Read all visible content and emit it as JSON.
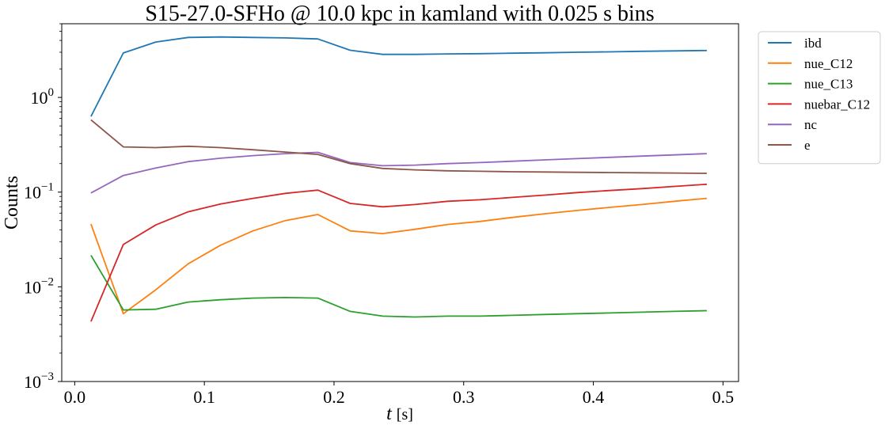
{
  "chart_data": {
    "type": "line",
    "title": "S15-27.0-SFHo @ 10.0 kpc in kamland with 0.025 s bins",
    "xlabel_var": "t",
    "xlabel_unit": "[s]",
    "ylabel": "Counts",
    "xlim": [
      -0.01,
      0.512
    ],
    "ylim": [
      0.001,
      6.0
    ],
    "yscale": "log",
    "legend_position": "outside-top-right",
    "xticks": [
      {
        "value": 0.0,
        "label": "0.0"
      },
      {
        "value": 0.1,
        "label": "0.1"
      },
      {
        "value": 0.2,
        "label": "0.2"
      },
      {
        "value": 0.3,
        "label": "0.3"
      },
      {
        "value": 0.4,
        "label": "0.4"
      },
      {
        "value": 0.5,
        "label": "0.5"
      }
    ],
    "yticks": [
      {
        "value": 0.001,
        "base": "10",
        "exp": "−3"
      },
      {
        "value": 0.01,
        "base": "10",
        "exp": "−2"
      },
      {
        "value": 0.1,
        "base": "10",
        "exp": "−1"
      },
      {
        "value": 1,
        "base": "10",
        "exp": "0"
      }
    ],
    "x": [
      0.0125,
      0.0375,
      0.0625,
      0.0875,
      0.1125,
      0.1375,
      0.1625,
      0.1875,
      0.2125,
      0.2375,
      0.2625,
      0.2875,
      0.3125,
      0.3375,
      0.3625,
      0.3875,
      0.4125,
      0.4375,
      0.4625,
      0.4875
    ],
    "series": [
      {
        "name": "ibd",
        "color": "#1f77b4",
        "values": [
          0.63,
          2.95,
          3.85,
          4.3,
          4.35,
          4.3,
          4.25,
          4.15,
          3.15,
          2.85,
          2.85,
          2.88,
          2.9,
          2.93,
          2.96,
          3.0,
          3.03,
          3.07,
          3.1,
          3.13
        ]
      },
      {
        "name": "nue_C12",
        "color": "#ff7f0e",
        "values": [
          0.046,
          0.0052,
          0.0093,
          0.0175,
          0.0275,
          0.039,
          0.05,
          0.058,
          0.039,
          0.0365,
          0.0405,
          0.0455,
          0.049,
          0.054,
          0.059,
          0.064,
          0.069,
          0.074,
          0.08,
          0.086
        ]
      },
      {
        "name": "nue_C13",
        "color": "#2ca02c",
        "values": [
          0.0215,
          0.0057,
          0.0058,
          0.0069,
          0.0073,
          0.0076,
          0.0077,
          0.0076,
          0.0055,
          0.0049,
          0.0048,
          0.0049,
          0.0049,
          0.005,
          0.0051,
          0.0052,
          0.0053,
          0.0054,
          0.0055,
          0.0056
        ]
      },
      {
        "name": "nuebar_C12",
        "color": "#d62728",
        "values": [
          0.0043,
          0.028,
          0.045,
          0.062,
          0.075,
          0.086,
          0.097,
          0.105,
          0.076,
          0.07,
          0.074,
          0.08,
          0.083,
          0.088,
          0.093,
          0.099,
          0.104,
          0.109,
          0.115,
          0.121
        ]
      },
      {
        "name": "nc",
        "color": "#9467bd",
        "values": [
          0.098,
          0.15,
          0.18,
          0.21,
          0.228,
          0.243,
          0.255,
          0.263,
          0.205,
          0.19,
          0.193,
          0.2,
          0.205,
          0.212,
          0.219,
          0.226,
          0.233,
          0.24,
          0.247,
          0.255
        ]
      },
      {
        "name": "e",
        "color": "#8c564b",
        "values": [
          0.58,
          0.3,
          0.295,
          0.305,
          0.295,
          0.28,
          0.265,
          0.25,
          0.2,
          0.178,
          0.172,
          0.168,
          0.166,
          0.164,
          0.163,
          0.162,
          0.161,
          0.16,
          0.159,
          0.158
        ]
      }
    ]
  }
}
